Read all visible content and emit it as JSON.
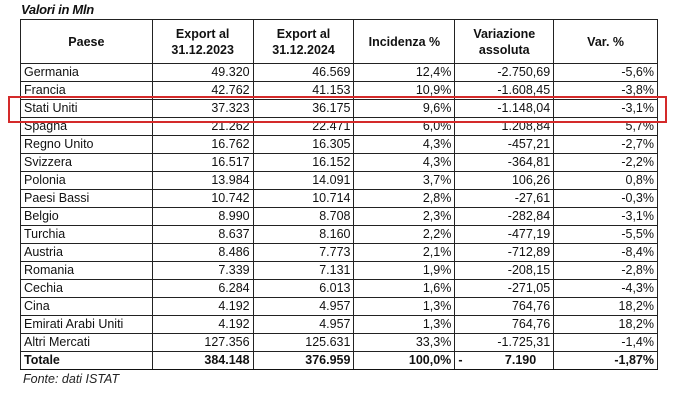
{
  "caption": "Valori in Mln",
  "headers": [
    "Paese",
    "Export al 31.12.2023",
    "Export al 31.12.2024",
    "Incidenza %",
    "Variazione assoluta",
    "Var. %"
  ],
  "header_lines": [
    [
      "Paese"
    ],
    [
      "Export al",
      "31.12.2023"
    ],
    [
      "Export al",
      "31.12.2024"
    ],
    [
      "Incidenza %"
    ],
    [
      "Variazione",
      "assoluta"
    ],
    [
      "Var. %"
    ]
  ],
  "rows": [
    [
      "Germania",
      "49.320",
      "46.569",
      "12,4%",
      "-2.750,69",
      "-5,6%"
    ],
    [
      "Francia",
      "42.762",
      "41.153",
      "10,9%",
      "-1.608,45",
      "-3,8%"
    ],
    [
      "Stati Uniti",
      "37.323",
      "36.175",
      "9,6%",
      "-1.148,04",
      "-3,1%"
    ],
    [
      "Spagna",
      "21.262",
      "22.471",
      "6,0%",
      "1.208,84",
      "5,7%"
    ],
    [
      "Regno Unito",
      "16.762",
      "16.305",
      "4,3%",
      "-457,21",
      "-2,7%"
    ],
    [
      "Svizzera",
      "16.517",
      "16.152",
      "4,3%",
      "-364,81",
      "-2,2%"
    ],
    [
      "Polonia",
      "13.984",
      "14.091",
      "3,7%",
      "106,26",
      "0,8%"
    ],
    [
      "Paesi Bassi",
      "10.742",
      "10.714",
      "2,8%",
      "-27,61",
      "-0,3%"
    ],
    [
      "Belgio",
      "8.990",
      "8.708",
      "2,3%",
      "-282,84",
      "-3,1%"
    ],
    [
      "Turchia",
      "8.637",
      "8.160",
      "2,2%",
      "-477,19",
      "-5,5%"
    ],
    [
      "Austria",
      "8.486",
      "7.773",
      "2,1%",
      "-712,89",
      "-8,4%"
    ],
    [
      "Romania",
      "7.339",
      "7.131",
      "1,9%",
      "-208,15",
      "-2,8%"
    ],
    [
      "Cechia",
      "6.284",
      "6.013",
      "1,6%",
      "-271,05",
      "-4,3%"
    ],
    [
      "Cina",
      "4.192",
      "4.957",
      "1,3%",
      "764,76",
      "18,2%"
    ],
    [
      "Emirati Arabi Uniti",
      "4.192",
      "4.957",
      "1,3%",
      "764,76",
      "18,2%"
    ],
    [
      "Altri Mercati",
      "127.356",
      "125.631",
      "33,3%",
      "-1.725,31",
      "-1,4%"
    ]
  ],
  "total": {
    "label": "Totale",
    "export_2023": "384.148",
    "export_2024": "376.959",
    "incidenza": "100,0%",
    "variazione_sign": "-",
    "variazione": "7.190",
    "var_pct": "-1,87%"
  },
  "highlighted_row": "Stati Uniti",
  "highlight_color": "#d42a2a",
  "source": "Fonte: dati ISTAT"
}
